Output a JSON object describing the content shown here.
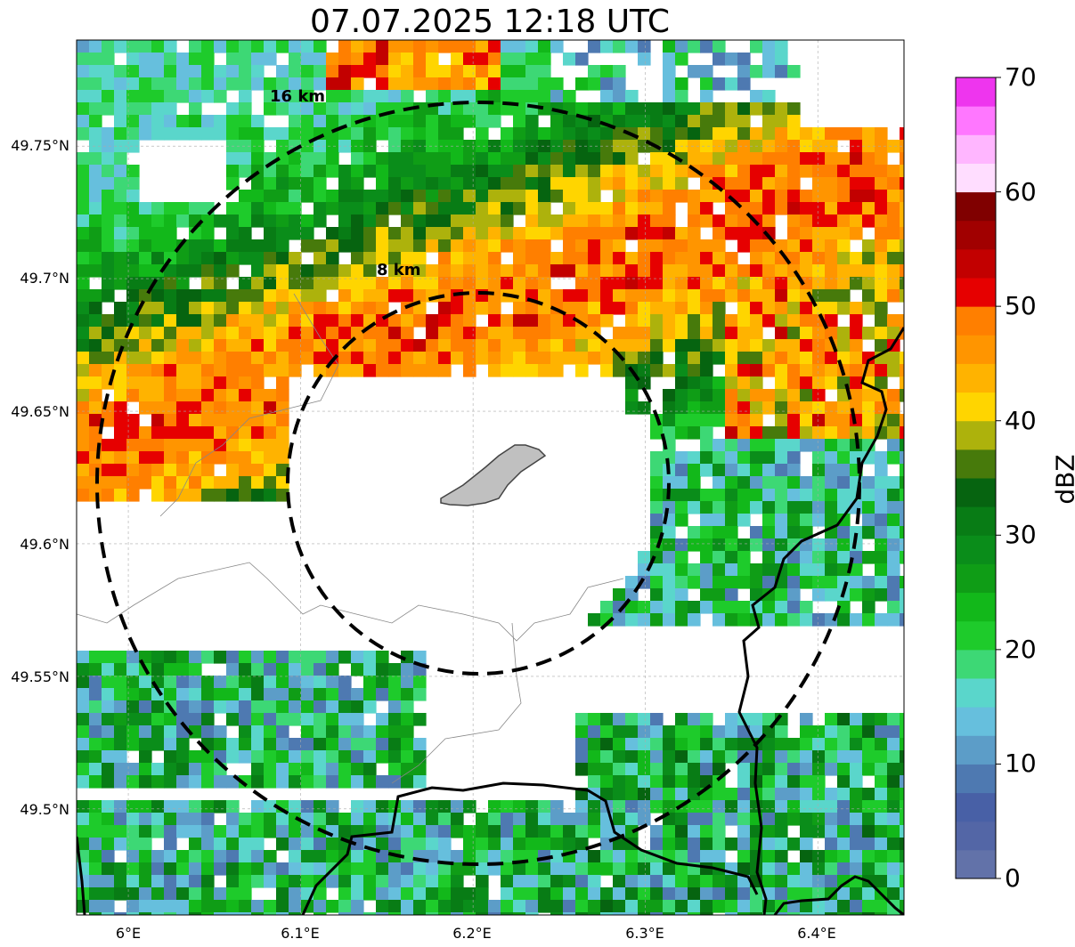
{
  "title": "07.07.2025 12:18 UTC",
  "axes": {
    "lat_ticks": [
      "49.75°N",
      "49.7°N",
      "49.65°N",
      "49.6°N",
      "49.55°N",
      "49.5°N"
    ],
    "lon_ticks": [
      "6°E",
      "6.1°E",
      "6.2°E",
      "6.3°E",
      "6.4°E"
    ]
  },
  "rings": [
    {
      "label": "16 km",
      "radius_km": 16
    },
    {
      "label": "8 km",
      "radius_km": 8
    }
  ],
  "colorbar": {
    "label": "dBZ",
    "ticks": [
      "0",
      "10",
      "20",
      "30",
      "40",
      "50",
      "60",
      "70"
    ],
    "colors": [
      "#6272a9",
      "#5366a6",
      "#4860a6",
      "#4e79b1",
      "#5c9dc8",
      "#66bfdd",
      "#5ad6cb",
      "#3dd875",
      "#1ecb2b",
      "#12b81a",
      "#0f9d16",
      "#0a8d1a",
      "#087c15",
      "#066410",
      "#477a0b",
      "#adb20c",
      "#ffd500",
      "#ffb300",
      "#ff9500",
      "#ff7f00",
      "#e60000",
      "#c20000",
      "#a10000",
      "#800000",
      "#ffddff",
      "#ffb6ff",
      "#ff77ff",
      "#ee35ee"
    ]
  },
  "chart_data": {
    "type": "heatmap",
    "title": "07.07.2025 12:18 UTC",
    "variable": "reflectivity",
    "unit": "dBZ",
    "vmin": 0,
    "vmax": 70,
    "lon_range": [
      5.97,
      6.45
    ],
    "lat_range": [
      49.46,
      49.79
    ],
    "radar_site": {
      "lon": 6.2,
      "lat": 49.62
    },
    "range_rings_km": [
      8,
      16
    ],
    "features": [
      {
        "name": "intense band",
        "max_dbz": 55,
        "location": "north-east, around 6.4°E 49.67°N"
      },
      {
        "name": "strong cells",
        "max_dbz": 55,
        "location": "north, around 6.13°E 49.78°N"
      },
      {
        "name": "echo-free zone",
        "location": "center and south-west of radar"
      }
    ]
  }
}
